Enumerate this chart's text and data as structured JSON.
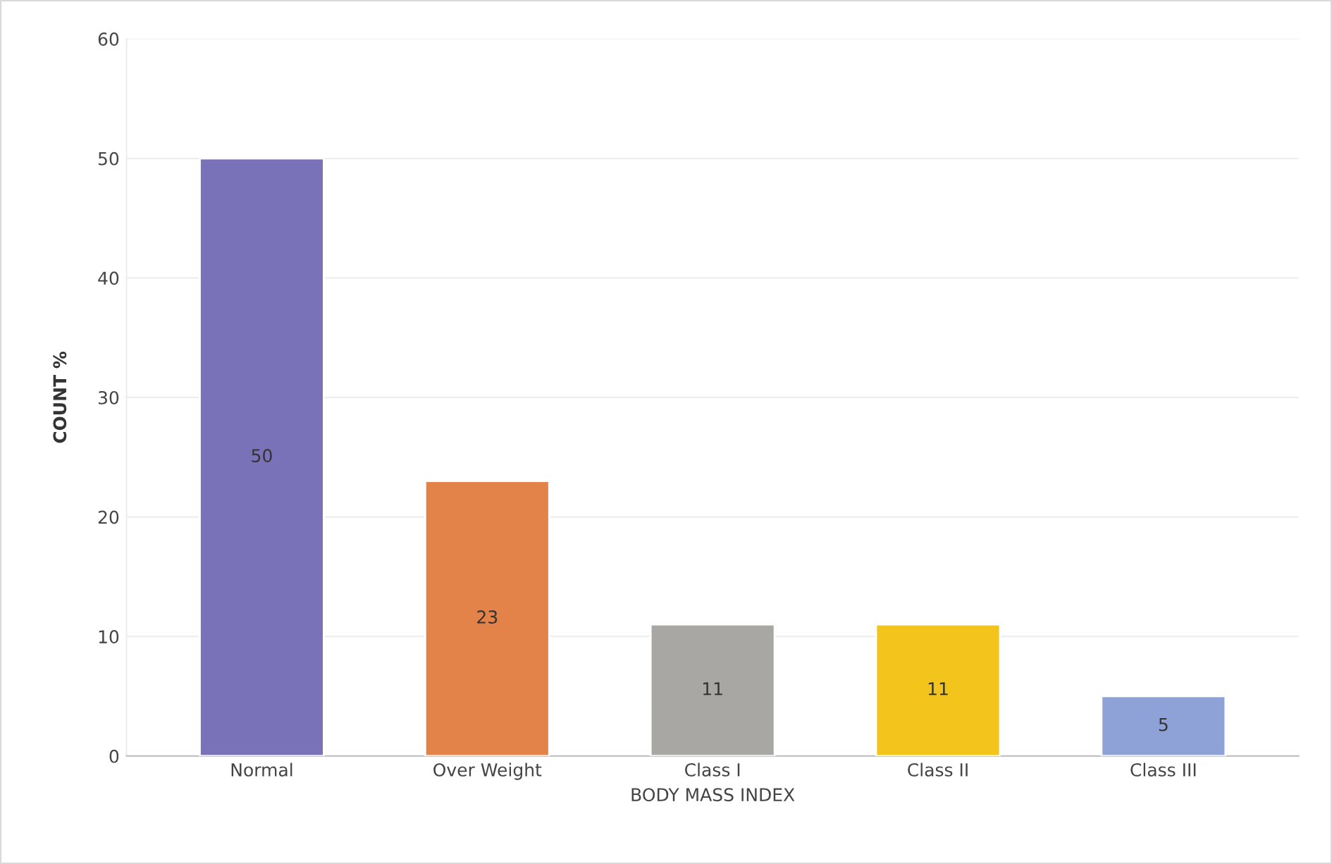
{
  "chart_data": {
    "type": "bar",
    "xlabel": "BODY MASS INDEX",
    "ylabel": "COUNT %",
    "categories": [
      "Normal",
      "Over Weight",
      "Class I",
      "Class II",
      "Class III"
    ],
    "values": [
      50,
      23,
      11,
      11,
      5
    ],
    "colors": [
      "#7a72b8",
      "#e3834a",
      "#a9a7a4",
      "#f2c41c",
      "#8ea2d8"
    ],
    "ylim": [
      0,
      60
    ],
    "yticks": [
      0,
      10,
      20,
      30,
      40,
      50,
      60
    ],
    "grid": "y",
    "data_labels": true
  }
}
